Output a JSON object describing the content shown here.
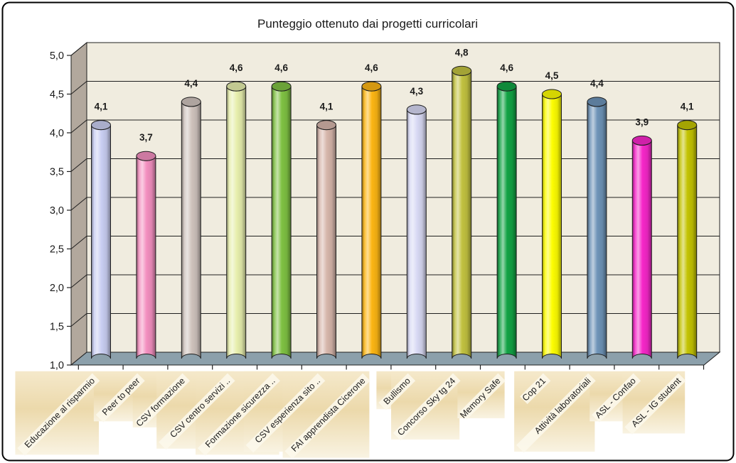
{
  "chart_data": {
    "type": "bar",
    "style": "3d-cylinder",
    "title": "Punteggio ottenuto dai progetti curricolari",
    "categories": [
      "Educazione al risparmio",
      "Peer to peer",
      "CSV formazione",
      "CSV centro servizi ..",
      "Formazione sicurezza ..",
      "CSV esperienza sito ..",
      "FAI apprendista Cicerone",
      "Bullismo",
      "Concorso Sky tg 24",
      "Memory Safe",
      "Cop 21",
      "Attività laboratoriali",
      "ASL - Confao",
      "ASL - IG student"
    ],
    "values": [
      4.1,
      3.7,
      4.4,
      4.6,
      4.6,
      4.1,
      4.6,
      4.3,
      4.8,
      4.6,
      4.5,
      4.4,
      3.9,
      4.1
    ],
    "value_labels": [
      "4,1",
      "3,7",
      "4,4",
      "4,6",
      "4,6",
      "4,1",
      "4,6",
      "4,3",
      "4,8",
      "4,6",
      "4,5",
      "4,4",
      "3,9",
      "4,1"
    ],
    "bar_colors": [
      "#c9cef2",
      "#f390c0",
      "#cfc3bd",
      "#e7efad",
      "#7fc143",
      "#d6b6ab",
      "#fcb514",
      "#d8d9f4",
      "#c2c240",
      "#12a345",
      "#fdfd02",
      "#6e94b8",
      "#f627c9",
      "#c3c303"
    ],
    "ylim": [
      1.0,
      5.0
    ],
    "ytick_step": 0.5,
    "ytick_values": [
      1.0,
      1.5,
      2.0,
      2.5,
      3.0,
      3.5,
      4.0,
      4.5,
      5.0
    ],
    "ytick_labels": [
      "1,0",
      "1,5",
      "2,0",
      "2,5",
      "3,0",
      "3,5",
      "4,0",
      "4,5",
      "5,0"
    ],
    "grid": true,
    "legend": null,
    "colors": {
      "back_wall": "#f0ecdf",
      "side_wall": "#b2a89d",
      "floor": "#8ca0ab",
      "outline": "#1f1f1f",
      "label_box_top": "#f5e9cb",
      "label_box_mid": "#ecd9ab",
      "label_box_bottom": "#f9f3e2",
      "label_strip": "#fcf8ec",
      "border": "#000000",
      "page_background": "#ffffff",
      "text": "#1a1a1a"
    }
  }
}
